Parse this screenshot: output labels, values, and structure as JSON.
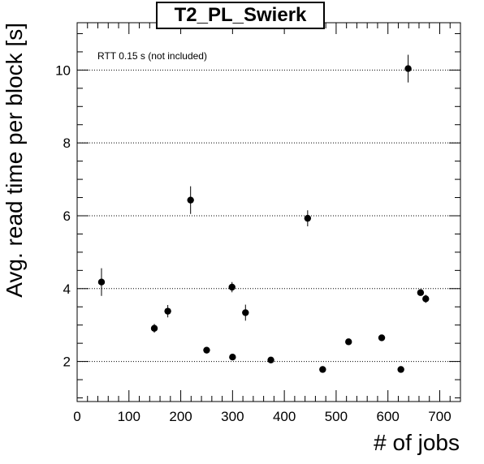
{
  "chart_data": {
    "type": "scatter",
    "title": "T2_PL_Swierk",
    "xlabel": "# of jobs",
    "ylabel": "Avg. read time per block [s]",
    "annotation": "RTT 0.15 s (not included)",
    "xlim": [
      0,
      740
    ],
    "ylim": [
      0.9,
      11.3
    ],
    "xticks": [
      0,
      100,
      200,
      300,
      400,
      500,
      600,
      700
    ],
    "yticks": [
      2,
      4,
      6,
      8,
      10
    ],
    "grid": "horizontal-dotted",
    "points": [
      {
        "x": 47,
        "y": 4.18,
        "err": 0.38
      },
      {
        "x": 149,
        "y": 2.91,
        "err": 0.12
      },
      {
        "x": 175,
        "y": 3.38,
        "err": 0.17
      },
      {
        "x": 219,
        "y": 6.43,
        "err": 0.38
      },
      {
        "x": 250,
        "y": 2.31,
        "err": 0.05
      },
      {
        "x": 299,
        "y": 4.04,
        "err": 0.14
      },
      {
        "x": 300,
        "y": 2.12,
        "err": 0.05
      },
      {
        "x": 325,
        "y": 3.34,
        "err": 0.22
      },
      {
        "x": 374,
        "y": 2.04,
        "err": 0.05
      },
      {
        "x": 445,
        "y": 5.93,
        "err": 0.22
      },
      {
        "x": 474,
        "y": 1.78,
        "err": 0.05
      },
      {
        "x": 524,
        "y": 2.54,
        "err": 0.05
      },
      {
        "x": 588,
        "y": 2.65,
        "err": 0.05
      },
      {
        "x": 625,
        "y": 1.78,
        "err": 0.05
      },
      {
        "x": 639,
        "y": 10.04,
        "err": 0.38
      },
      {
        "x": 663,
        "y": 3.89,
        "err": 0.08
      },
      {
        "x": 673,
        "y": 3.72,
        "err": 0.11
      }
    ]
  }
}
